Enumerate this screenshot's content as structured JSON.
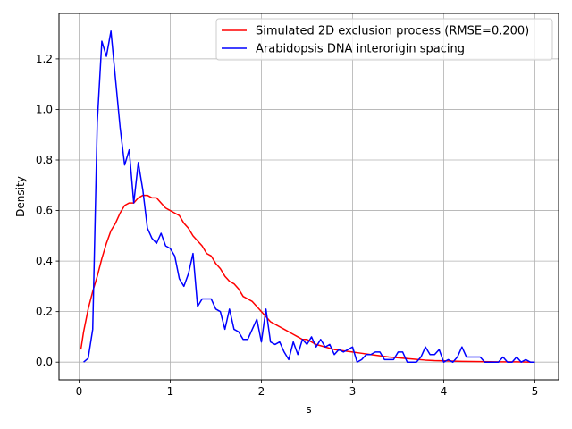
{
  "chart_data": {
    "type": "line",
    "title": "",
    "xlabel": "s",
    "ylabel": "Density",
    "xlim": [
      -0.22,
      5.26
    ],
    "ylim": [
      -0.07,
      1.38
    ],
    "xticks": [
      0,
      1,
      2,
      3,
      4,
      5
    ],
    "yticks": [
      0.0,
      0.2,
      0.4,
      0.6,
      0.8,
      1.0,
      1.2
    ],
    "grid": true,
    "legend_position": "upper-right",
    "series": [
      {
        "name": "Simulated 2D exclusion process (RMSE=0.200)",
        "color": "#ff0000",
        "x": [
          0.02,
          0.05,
          0.1,
          0.15,
          0.2,
          0.25,
          0.3,
          0.35,
          0.4,
          0.45,
          0.5,
          0.55,
          0.6,
          0.65,
          0.7,
          0.75,
          0.8,
          0.85,
          0.9,
          0.95,
          1.0,
          1.05,
          1.1,
          1.15,
          1.2,
          1.25,
          1.3,
          1.35,
          1.4,
          1.45,
          1.5,
          1.55,
          1.6,
          1.65,
          1.7,
          1.75,
          1.8,
          1.85,
          1.9,
          1.95,
          2.0,
          2.05,
          2.1,
          2.15,
          2.2,
          2.25,
          2.3,
          2.35,
          2.4,
          2.45,
          2.5,
          2.6,
          2.7,
          2.8,
          2.9,
          3.0,
          3.1,
          3.2,
          3.3,
          3.4,
          3.5,
          3.6,
          3.7,
          3.8,
          3.9,
          4.0,
          4.2,
          4.4,
          4.6,
          4.8,
          5.0
        ],
        "y": [
          0.05,
          0.12,
          0.21,
          0.28,
          0.34,
          0.41,
          0.47,
          0.52,
          0.55,
          0.59,
          0.62,
          0.63,
          0.63,
          0.65,
          0.66,
          0.66,
          0.65,
          0.65,
          0.63,
          0.61,
          0.6,
          0.59,
          0.58,
          0.55,
          0.53,
          0.5,
          0.48,
          0.46,
          0.43,
          0.42,
          0.39,
          0.37,
          0.34,
          0.32,
          0.31,
          0.29,
          0.26,
          0.25,
          0.24,
          0.22,
          0.2,
          0.18,
          0.16,
          0.15,
          0.14,
          0.13,
          0.12,
          0.11,
          0.1,
          0.09,
          0.09,
          0.07,
          0.06,
          0.05,
          0.045,
          0.04,
          0.035,
          0.03,
          0.025,
          0.02,
          0.017,
          0.014,
          0.011,
          0.008,
          0.006,
          0.005,
          0.003,
          0.002,
          0.001,
          0.001,
          0.0
        ]
      },
      {
        "name": "Arabidopsis DNA interorigin spacing",
        "color": "#0000ff",
        "x": [
          0.05,
          0.1,
          0.15,
          0.2,
          0.25,
          0.3,
          0.35,
          0.4,
          0.45,
          0.5,
          0.55,
          0.6,
          0.65,
          0.7,
          0.75,
          0.8,
          0.85,
          0.9,
          0.95,
          1.0,
          1.05,
          1.1,
          1.15,
          1.2,
          1.25,
          1.3,
          1.35,
          1.4,
          1.45,
          1.5,
          1.55,
          1.6,
          1.65,
          1.7,
          1.75,
          1.8,
          1.85,
          1.9,
          1.95,
          2.0,
          2.05,
          2.1,
          2.15,
          2.2,
          2.25,
          2.3,
          2.35,
          2.4,
          2.45,
          2.5,
          2.55,
          2.6,
          2.65,
          2.7,
          2.75,
          2.8,
          2.85,
          2.9,
          2.95,
          3.0,
          3.05,
          3.1,
          3.15,
          3.2,
          3.25,
          3.3,
          3.35,
          3.4,
          3.45,
          3.5,
          3.55,
          3.6,
          3.65,
          3.7,
          3.75,
          3.8,
          3.85,
          3.9,
          3.95,
          4.0,
          4.05,
          4.1,
          4.15,
          4.2,
          4.25,
          4.3,
          4.35,
          4.4,
          4.45,
          4.5,
          4.55,
          4.6,
          4.65,
          4.7,
          4.75,
          4.8,
          4.85,
          4.9,
          4.95,
          5.0
        ],
        "y": [
          0.0,
          0.015,
          0.13,
          0.95,
          1.27,
          1.21,
          1.31,
          1.12,
          0.93,
          0.78,
          0.84,
          0.63,
          0.79,
          0.68,
          0.53,
          0.49,
          0.47,
          0.51,
          0.46,
          0.45,
          0.42,
          0.33,
          0.3,
          0.35,
          0.43,
          0.22,
          0.25,
          0.25,
          0.25,
          0.21,
          0.2,
          0.13,
          0.21,
          0.13,
          0.12,
          0.09,
          0.09,
          0.13,
          0.17,
          0.08,
          0.21,
          0.08,
          0.07,
          0.08,
          0.04,
          0.01,
          0.08,
          0.03,
          0.09,
          0.07,
          0.1,
          0.06,
          0.09,
          0.06,
          0.07,
          0.03,
          0.05,
          0.04,
          0.05,
          0.06,
          0.0,
          0.01,
          0.03,
          0.03,
          0.04,
          0.04,
          0.01,
          0.01,
          0.01,
          0.04,
          0.04,
          0.0,
          0.0,
          0.0,
          0.02,
          0.06,
          0.03,
          0.03,
          0.05,
          0.0,
          0.01,
          0.0,
          0.02,
          0.06,
          0.02,
          0.02,
          0.02,
          0.02,
          0.0,
          0.0,
          0.0,
          0.0,
          0.02,
          0.0,
          0.0,
          0.02,
          0.0,
          0.01,
          0.0,
          0.0
        ]
      }
    ]
  }
}
